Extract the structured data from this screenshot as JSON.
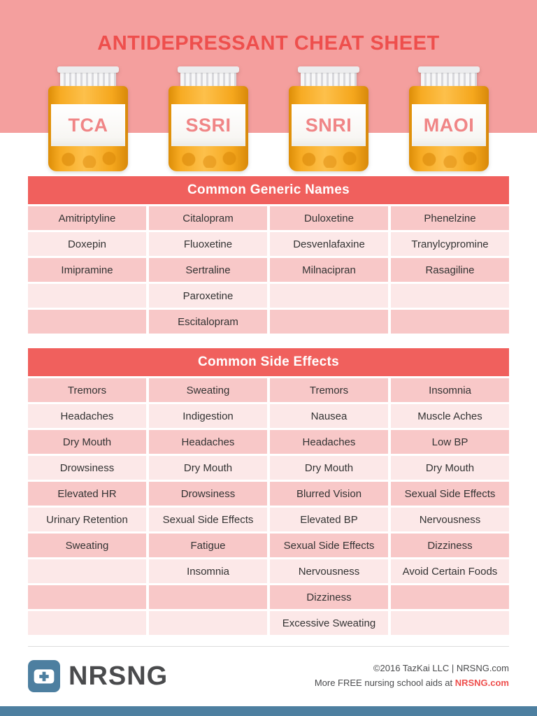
{
  "header": {
    "title": "ANTIDEPRESSANT CHEAT SHEET"
  },
  "bottles": [
    {
      "label": "TCA"
    },
    {
      "label": "SSRI"
    },
    {
      "label": "SNRI"
    },
    {
      "label": "MAOI"
    }
  ],
  "generic_names": {
    "header": "Common Generic Names",
    "rows": [
      [
        "Amitriptyline",
        "Citalopram",
        "Duloxetine",
        "Phenelzine"
      ],
      [
        "Doxepin",
        "Fluoxetine",
        "Desvenlafaxine",
        "Tranylcypromine"
      ],
      [
        "Imipramine",
        "Sertraline",
        "Milnacipran",
        "Rasagiline"
      ],
      [
        "",
        "Paroxetine",
        "",
        ""
      ],
      [
        "",
        "Escitalopram",
        "",
        ""
      ]
    ]
  },
  "side_effects": {
    "header": "Common Side Effects",
    "rows": [
      [
        "Tremors",
        "Sweating",
        "Tremors",
        "Insomnia"
      ],
      [
        "Headaches",
        "Indigestion",
        "Nausea",
        "Muscle Aches"
      ],
      [
        "Dry Mouth",
        "Headaches",
        "Headaches",
        "Low BP"
      ],
      [
        "Drowsiness",
        "Dry Mouth",
        "Dry Mouth",
        "Dry Mouth"
      ],
      [
        "Elevated HR",
        "Drowsiness",
        "Blurred Vision",
        "Sexual Side Effects"
      ],
      [
        "Urinary Retention",
        "Sexual Side Effects",
        "Elevated BP",
        "Nervousness"
      ],
      [
        "Sweating",
        "Fatigue",
        "Sexual Side Effects",
        "Dizziness"
      ],
      [
        "",
        "Insomnia",
        "Nervousness",
        "Avoid Certain Foods"
      ],
      [
        "",
        "",
        "Dizziness",
        ""
      ],
      [
        "",
        "",
        "Excessive Sweating",
        ""
      ]
    ]
  },
  "footer": {
    "brand": "NRSNG",
    "copyright": "©2016 TazKai LLC | NRSNG.com",
    "tagline_prefix": "More FREE nursing school aids at ",
    "tagline_link": "NRSNG.com"
  },
  "colors": {
    "accent_red": "#ee4f4d",
    "hero_pink": "#f49f9e",
    "table_header": "#f0605d",
    "row_dark": "#f8c8c8",
    "row_light": "#fce8e8",
    "bottle_orange": "#f5a71d",
    "footer_blue": "#4d7fa0"
  }
}
